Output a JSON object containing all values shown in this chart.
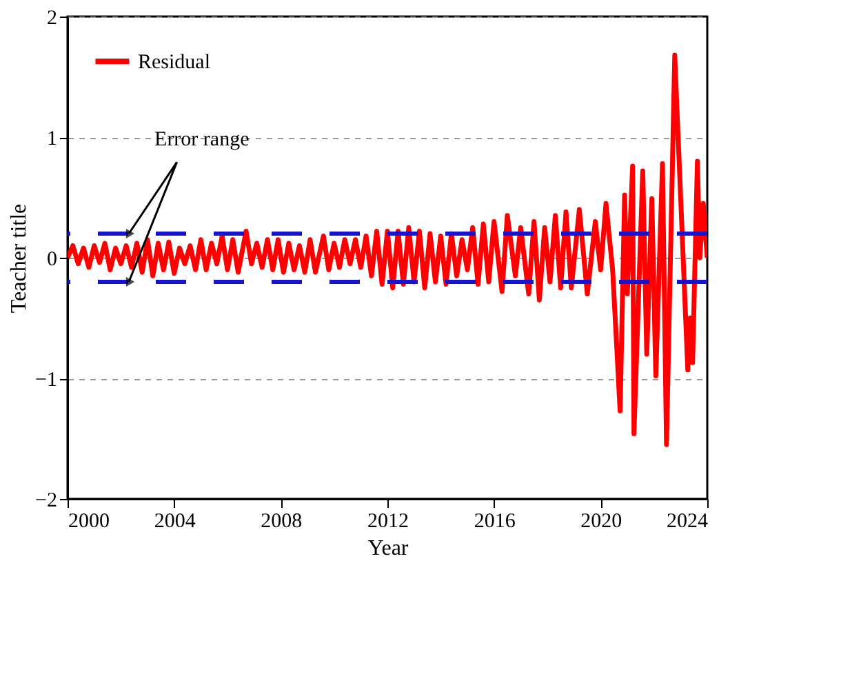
{
  "chart_data": {
    "type": "line",
    "xlabel": "Year",
    "ylabel": "Teacher title",
    "xlim": [
      2000,
      2024
    ],
    "xticks": [
      2000,
      2004,
      2008,
      2012,
      2016,
      2020,
      2024
    ],
    "ylim": [
      -2,
      2
    ],
    "yticks": [
      -2,
      -1,
      0,
      1,
      2
    ],
    "grid": "y",
    "legend": "top left",
    "line_style": "solid",
    "marker": "none",
    "series": [
      {
        "name": "Residual",
        "color": "#ff0000",
        "x": [
          2000.0,
          2000.2,
          2000.4,
          2000.6,
          2000.8,
          2001.0,
          2001.2,
          2001.4,
          2001.6,
          2001.8,
          2002.0,
          2002.2,
          2002.4,
          2002.6,
          2002.8,
          2003.0,
          2003.2,
          2003.4,
          2003.6,
          2003.8,
          2004.0,
          2004.2,
          2004.4,
          2004.6,
          2004.8,
          2005.0,
          2005.2,
          2005.4,
          2005.6,
          2005.8,
          2006.0,
          2006.2,
          2006.4,
          2006.7,
          2006.9,
          2007.1,
          2007.3,
          2007.5,
          2007.7,
          2007.9,
          2008.1,
          2008.3,
          2008.5,
          2008.7,
          2008.9,
          2009.1,
          2009.3,
          2009.6,
          2009.8,
          2010.0,
          2010.2,
          2010.4,
          2010.6,
          2010.8,
          2011.0,
          2011.2,
          2011.4,
          2011.6,
          2011.8,
          2012.0,
          2012.2,
          2012.4,
          2012.6,
          2012.8,
          2013.0,
          2013.2,
          2013.4,
          2013.6,
          2013.8,
          2014.0,
          2014.2,
          2014.4,
          2014.6,
          2014.8,
          2015.0,
          2015.2,
          2015.4,
          2015.6,
          2015.8,
          2016.0,
          2016.3,
          2016.5,
          2016.8,
          2017.0,
          2017.3,
          2017.5,
          2017.7,
          2017.9,
          2018.1,
          2018.3,
          2018.5,
          2018.7,
          2018.9,
          2019.2,
          2019.5,
          2019.8,
          2020.0,
          2020.2,
          2020.45,
          2020.73,
          2020.9,
          2021.0,
          2021.2,
          2021.25,
          2021.58,
          2021.73,
          2021.92,
          2022.07,
          2022.32,
          2022.47,
          2022.78,
          2023.27,
          2023.36,
          2023.45,
          2023.63,
          2023.72,
          2023.85,
          2024.0
        ],
        "values": [
          0.0,
          0.1,
          -0.05,
          0.08,
          -0.08,
          0.1,
          -0.04,
          0.12,
          -0.1,
          0.08,
          -0.05,
          0.1,
          -0.08,
          0.12,
          -0.12,
          0.15,
          -0.15,
          0.12,
          -0.1,
          0.13,
          -0.13,
          0.08,
          -0.05,
          0.1,
          -0.1,
          0.15,
          -0.1,
          0.12,
          -0.05,
          0.18,
          -0.1,
          0.15,
          -0.12,
          0.22,
          -0.05,
          0.12,
          -0.08,
          0.15,
          -0.1,
          0.15,
          -0.12,
          0.12,
          -0.1,
          0.1,
          -0.12,
          0.15,
          -0.12,
          0.18,
          -0.1,
          0.12,
          -0.08,
          0.15,
          -0.05,
          0.15,
          -0.08,
          0.18,
          -0.15,
          0.22,
          -0.22,
          0.22,
          -0.25,
          0.22,
          -0.22,
          0.25,
          -0.2,
          0.22,
          -0.25,
          0.2,
          -0.2,
          0.18,
          -0.22,
          0.2,
          -0.15,
          0.15,
          -0.1,
          0.25,
          -0.22,
          0.28,
          -0.2,
          0.3,
          -0.28,
          0.35,
          -0.15,
          0.25,
          -0.3,
          0.3,
          -0.35,
          0.25,
          -0.2,
          0.35,
          -0.25,
          0.38,
          -0.25,
          0.4,
          -0.3,
          0.3,
          -0.1,
          0.45,
          -0.1,
          -1.27,
          0.52,
          -0.3,
          0.76,
          -1.46,
          0.72,
          -0.8,
          0.49,
          -0.98,
          0.78,
          -1.55,
          1.68,
          -0.93,
          -0.5,
          -0.87,
          0.8,
          0.0,
          0.45,
          0.0
        ]
      }
    ],
    "ref_lines": [
      {
        "axis": "y",
        "value": 0.2,
        "color": "#1414d2",
        "line_style": "dashed"
      },
      {
        "axis": "y",
        "value": -0.2,
        "color": "#1414d2",
        "line_style": "dashed"
      }
    ],
    "annotations": [
      {
        "text": "Error range",
        "x": 2002.3,
        "y": 0.2
      }
    ]
  }
}
